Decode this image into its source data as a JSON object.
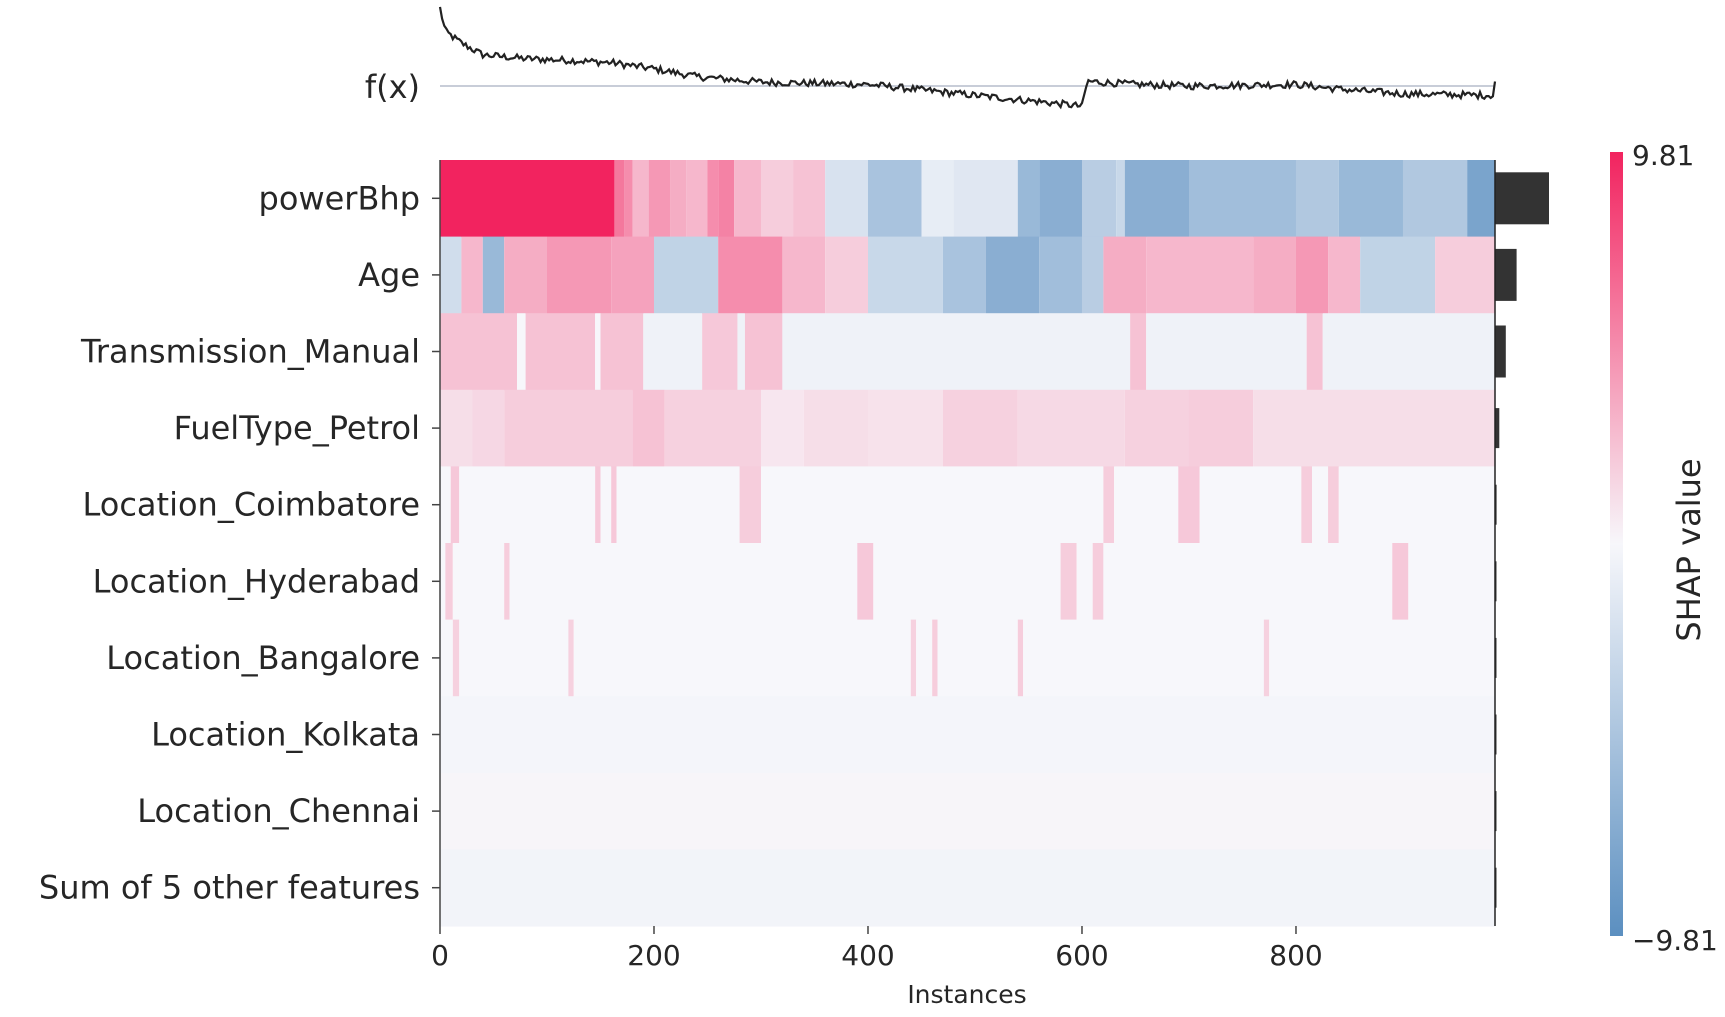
{
  "chart_data": {
    "type": "heatmap",
    "title": "",
    "xlabel": "Instances",
    "ylabel": "",
    "xlim": [
      0,
      986
    ],
    "x_ticks": [
      0,
      200,
      400,
      600,
      800
    ],
    "fx_label": "f(x)",
    "features": [
      "powerBhp",
      "Age",
      "Transmission_Manual",
      "FuelType_Petrol",
      "Location_Coimbatore",
      "Location_Hyderabad",
      "Location_Bangalore",
      "Location_Kolkata",
      "Location_Chennai",
      "Sum of 5 other features"
    ],
    "mean_abs_shap_relative": [
      1.0,
      0.4,
      0.2,
      0.08,
      0.03,
      0.02,
      0.02,
      0.01,
      0.01,
      0.01
    ],
    "fx_profile": [
      [
        0,
        1.0
      ],
      [
        5,
        0.7
      ],
      [
        20,
        0.55
      ],
      [
        40,
        0.4
      ],
      [
        80,
        0.35
      ],
      [
        120,
        0.33
      ],
      [
        160,
        0.3
      ],
      [
        200,
        0.22
      ],
      [
        240,
        0.12
      ],
      [
        300,
        0.05
      ],
      [
        400,
        0.02
      ],
      [
        500,
        -0.12
      ],
      [
        560,
        -0.2
      ],
      [
        600,
        -0.26
      ],
      [
        605,
        0.06
      ],
      [
        650,
        0.02
      ],
      [
        700,
        0.0
      ],
      [
        800,
        0.02
      ],
      [
        840,
        -0.04
      ],
      [
        900,
        -0.1
      ],
      [
        985,
        -0.12
      ],
      [
        986,
        0.06
      ]
    ],
    "heatmap_segments": [
      [
        [
          0,
          163,
          1.0
        ],
        [
          163,
          172,
          0.6
        ],
        [
          172,
          180,
          0.5
        ],
        [
          180,
          195,
          0.3
        ],
        [
          195,
          215,
          0.45
        ],
        [
          215,
          230,
          0.35
        ],
        [
          230,
          250,
          0.3
        ],
        [
          250,
          260,
          0.5
        ],
        [
          260,
          275,
          0.55
        ],
        [
          275,
          300,
          0.3
        ],
        [
          300,
          330,
          0.2
        ],
        [
          330,
          360,
          0.25
        ],
        [
          360,
          400,
          -0.2
        ],
        [
          400,
          450,
          -0.5
        ],
        [
          450,
          480,
          -0.1
        ],
        [
          480,
          540,
          -0.15
        ],
        [
          540,
          560,
          -0.6
        ],
        [
          560,
          600,
          -0.7
        ],
        [
          600,
          632,
          -0.4
        ],
        [
          632,
          640,
          -0.3
        ],
        [
          640,
          700,
          -0.7
        ],
        [
          700,
          800,
          -0.55
        ],
        [
          800,
          840,
          -0.45
        ],
        [
          840,
          900,
          -0.6
        ],
        [
          900,
          960,
          -0.45
        ],
        [
          960,
          986,
          -0.8
        ]
      ],
      [
        [
          0,
          20,
          -0.25
        ],
        [
          20,
          40,
          0.3
        ],
        [
          40,
          60,
          -0.6
        ],
        [
          60,
          100,
          0.35
        ],
        [
          100,
          160,
          0.45
        ],
        [
          160,
          200,
          0.4
        ],
        [
          200,
          260,
          -0.35
        ],
        [
          260,
          320,
          0.5
        ],
        [
          320,
          360,
          0.3
        ],
        [
          360,
          400,
          0.2
        ],
        [
          400,
          470,
          -0.3
        ],
        [
          470,
          510,
          -0.5
        ],
        [
          510,
          560,
          -0.7
        ],
        [
          560,
          600,
          -0.55
        ],
        [
          600,
          620,
          -0.4
        ],
        [
          620,
          660,
          0.35
        ],
        [
          660,
          760,
          0.3
        ],
        [
          760,
          800,
          0.35
        ],
        [
          800,
          830,
          0.45
        ],
        [
          830,
          860,
          0.3
        ],
        [
          860,
          930,
          -0.35
        ],
        [
          930,
          986,
          0.2
        ]
      ],
      [
        [
          0,
          72,
          0.25
        ],
        [
          72,
          80,
          0.0
        ],
        [
          80,
          145,
          0.25
        ],
        [
          145,
          150,
          0.0
        ],
        [
          150,
          190,
          0.25
        ],
        [
          190,
          245,
          -0.05
        ],
        [
          245,
          278,
          0.22
        ],
        [
          278,
          285,
          -0.05
        ],
        [
          285,
          320,
          0.25
        ],
        [
          320,
          645,
          -0.05
        ],
        [
          645,
          660,
          0.25
        ],
        [
          660,
          810,
          -0.05
        ],
        [
          810,
          825,
          0.25
        ],
        [
          825,
          986,
          -0.05
        ]
      ],
      [
        [
          0,
          30,
          0.12
        ],
        [
          30,
          60,
          0.15
        ],
        [
          60,
          180,
          0.2
        ],
        [
          180,
          210,
          0.25
        ],
        [
          210,
          300,
          0.18
        ],
        [
          300,
          340,
          0.08
        ],
        [
          340,
          400,
          0.12
        ],
        [
          400,
          470,
          0.1
        ],
        [
          470,
          540,
          0.18
        ],
        [
          540,
          640,
          0.14
        ],
        [
          640,
          700,
          0.18
        ],
        [
          700,
          760,
          0.2
        ],
        [
          760,
          986,
          0.12
        ]
      ],
      [
        [
          0,
          10,
          0.0
        ],
        [
          10,
          18,
          0.22
        ],
        [
          18,
          145,
          0.0
        ],
        [
          145,
          150,
          0.22
        ],
        [
          150,
          160,
          0.0
        ],
        [
          160,
          165,
          0.22
        ],
        [
          165,
          280,
          0.0
        ],
        [
          280,
          300,
          0.2
        ],
        [
          300,
          620,
          0.0
        ],
        [
          620,
          630,
          0.2
        ],
        [
          630,
          690,
          0.0
        ],
        [
          690,
          710,
          0.22
        ],
        [
          710,
          805,
          0.0
        ],
        [
          805,
          815,
          0.2
        ],
        [
          815,
          830,
          0.0
        ],
        [
          830,
          840,
          0.2
        ],
        [
          840,
          986,
          0.0
        ]
      ],
      [
        [
          0,
          5,
          0.0
        ],
        [
          5,
          12,
          0.2
        ],
        [
          12,
          60,
          0.0
        ],
        [
          60,
          65,
          0.2
        ],
        [
          65,
          390,
          0.0
        ],
        [
          390,
          405,
          0.22
        ],
        [
          405,
          580,
          0.0
        ],
        [
          580,
          595,
          0.2
        ],
        [
          595,
          610,
          0.0
        ],
        [
          610,
          620,
          0.2
        ],
        [
          620,
          890,
          0.0
        ],
        [
          890,
          905,
          0.22
        ],
        [
          905,
          986,
          0.0
        ]
      ],
      [
        [
          0,
          12,
          0.0
        ],
        [
          12,
          18,
          0.18
        ],
        [
          18,
          120,
          0.0
        ],
        [
          120,
          125,
          0.18
        ],
        [
          125,
          440,
          0.0
        ],
        [
          440,
          445,
          0.18
        ],
        [
          445,
          460,
          0.0
        ],
        [
          460,
          465,
          0.2
        ],
        [
          465,
          540,
          0.0
        ],
        [
          540,
          545,
          0.2
        ],
        [
          545,
          770,
          0.0
        ],
        [
          770,
          775,
          0.18
        ],
        [
          775,
          986,
          0.0
        ]
      ],
      [
        [
          0,
          986,
          -0.02
        ]
      ],
      [
        [
          0,
          986,
          0.01
        ]
      ],
      [
        [
          0,
          986,
          -0.03
        ]
      ]
    ],
    "colorbar": {
      "label": "SHAP value",
      "max_label": "9.81",
      "min_label": "−9.81",
      "max": 9.81,
      "min": -9.81,
      "colors": [
        "#ff0d57",
        "#ffffff",
        "#1e88e5"
      ]
    }
  }
}
